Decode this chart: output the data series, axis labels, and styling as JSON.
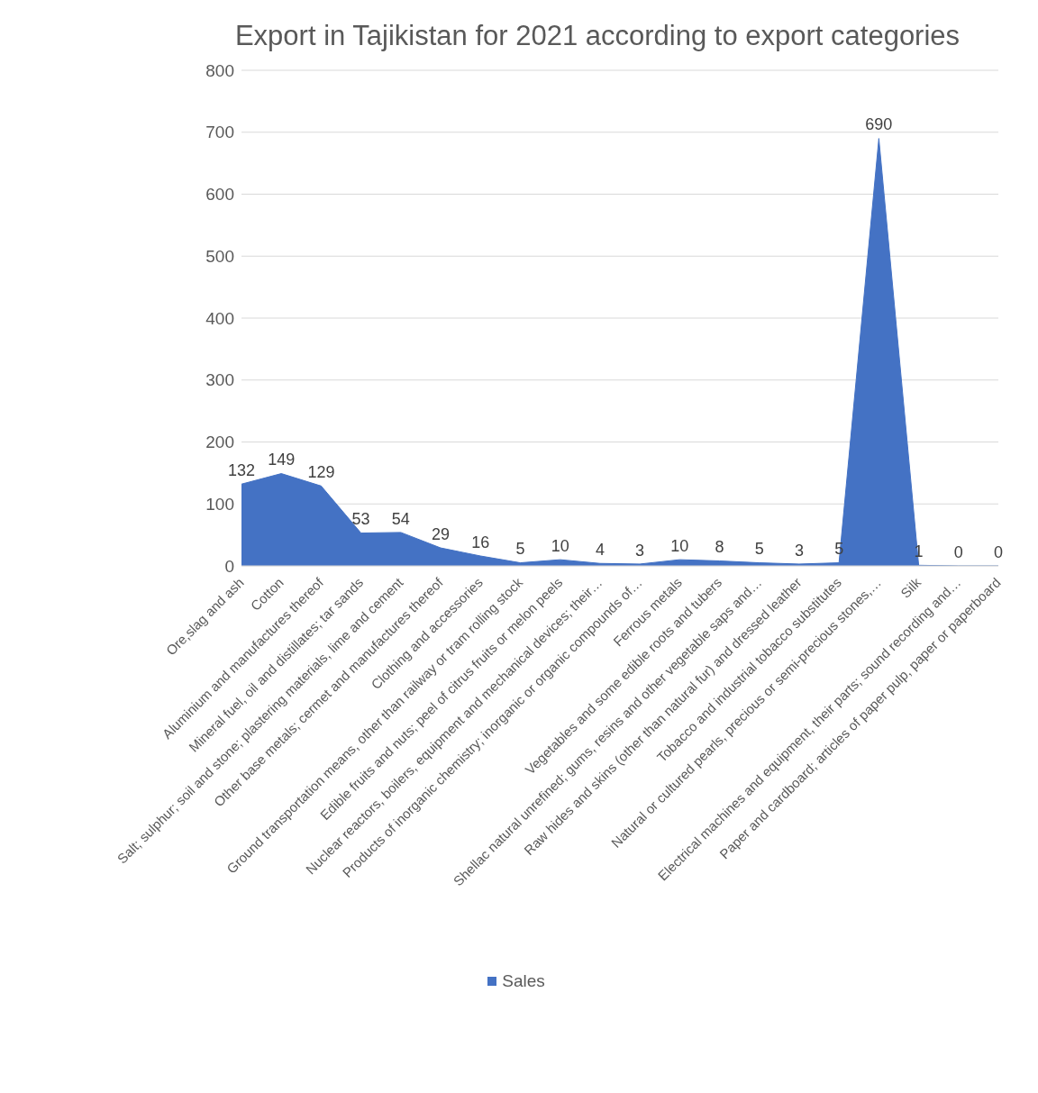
{
  "chart_data": {
    "type": "area",
    "title": "Export in Tajikistan for 2021 according to export categories",
    "categories": [
      "Ore,slag and ash",
      "Cotton",
      "Aluminium and manufactures thereof",
      "Mineral fuel, oil and distillates; tar sands",
      "Salt; sulphur; soil and stone; plastering materials, lime and cement",
      "Other base metals; cermet and manufactures thereof",
      "Clothing and accessories",
      "Ground transportation means, other than railway or tram rolling stock",
      "Edible fruits and nuts; peel of citrus fruits or melon peels",
      "Nuclear reactors, boilers, equipment and mechanical devices; their…",
      "Products of inorganic chemistry; inorganic or organic compounds of…",
      "Ferrous metals",
      "Vegetables and some edible roots and tubers",
      "Shellac natural unrefined; gums, resins and other vegetable saps and…",
      "Raw hides and skins (other than natural fur) and dressed leather",
      "Tobacco and industrial tobacco substitutes",
      "Natural or cultured pearls, precious or semi-precious stones,…",
      "Silk",
      "Electrical machines and equipment, their parts; sound recording and…",
      "Paper and cardboard; articles of paper pulp, paper or paperboard"
    ],
    "series": [
      {
        "name": "Sales",
        "color": "#4472c4",
        "values": [
          132,
          149,
          129,
          53,
          54,
          29,
          16,
          5,
          10,
          4,
          3,
          10,
          8,
          5,
          3,
          5,
          690,
          1,
          0,
          0
        ]
      }
    ],
    "ylim": [
      0,
      800
    ],
    "yticks": [
      0,
      100,
      200,
      300,
      400,
      500,
      600,
      700,
      800
    ],
    "grid": "y",
    "legend": "bottom",
    "data_labels": true
  }
}
